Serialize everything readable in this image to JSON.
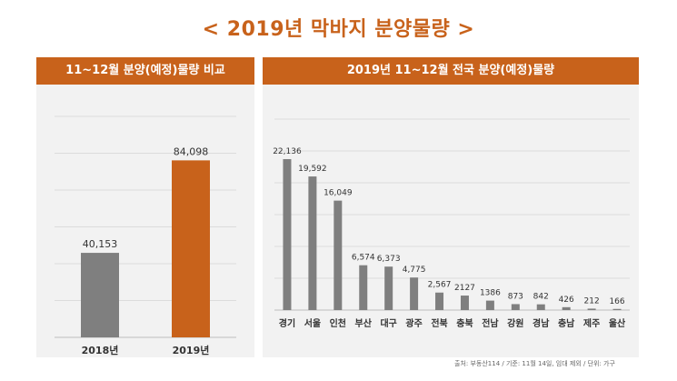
{
  "title": "< 2019년 막바지 분양물량 >",
  "source_note": "출처: 부동산114 / 기준: 11월 14일, 임대 제외 / 단위: 가구",
  "colors": {
    "accent": "#c8621b",
    "gray_bar": "#7f7f7f",
    "panel_bg": "#f2f2f2"
  },
  "chart_data": [
    {
      "type": "bar",
      "title": "11~12월 분양(예정)물량 비교",
      "categories": [
        "2018년",
        "2019년"
      ],
      "values": [
        40153,
        84098
      ],
      "labels": [
        "40,153",
        "84,098"
      ],
      "bar_colors": [
        "#7f7f7f",
        "#c8621b"
      ],
      "ylim": [
        0,
        105000
      ],
      "grid": true
    },
    {
      "type": "bar",
      "title": "2019년 11~12월 전국 분양(예정)물량",
      "categories": [
        "경기",
        "서울",
        "인천",
        "부산",
        "대구",
        "광주",
        "전북",
        "충북",
        "전남",
        "강원",
        "경남",
        "충남",
        "제주",
        "울산"
      ],
      "values": [
        22136,
        19592,
        16049,
        6574,
        6373,
        4775,
        2567,
        2127,
        1386,
        873,
        842,
        426,
        212,
        166
      ],
      "labels": [
        "22,136",
        "19,592",
        "16,049",
        "6,574",
        "6,373",
        "4,775",
        "2,567",
        "2127",
        "1386",
        "873",
        "842",
        "426",
        "212",
        "166"
      ],
      "ylim": [
        0,
        28000
      ],
      "grid": true
    }
  ]
}
